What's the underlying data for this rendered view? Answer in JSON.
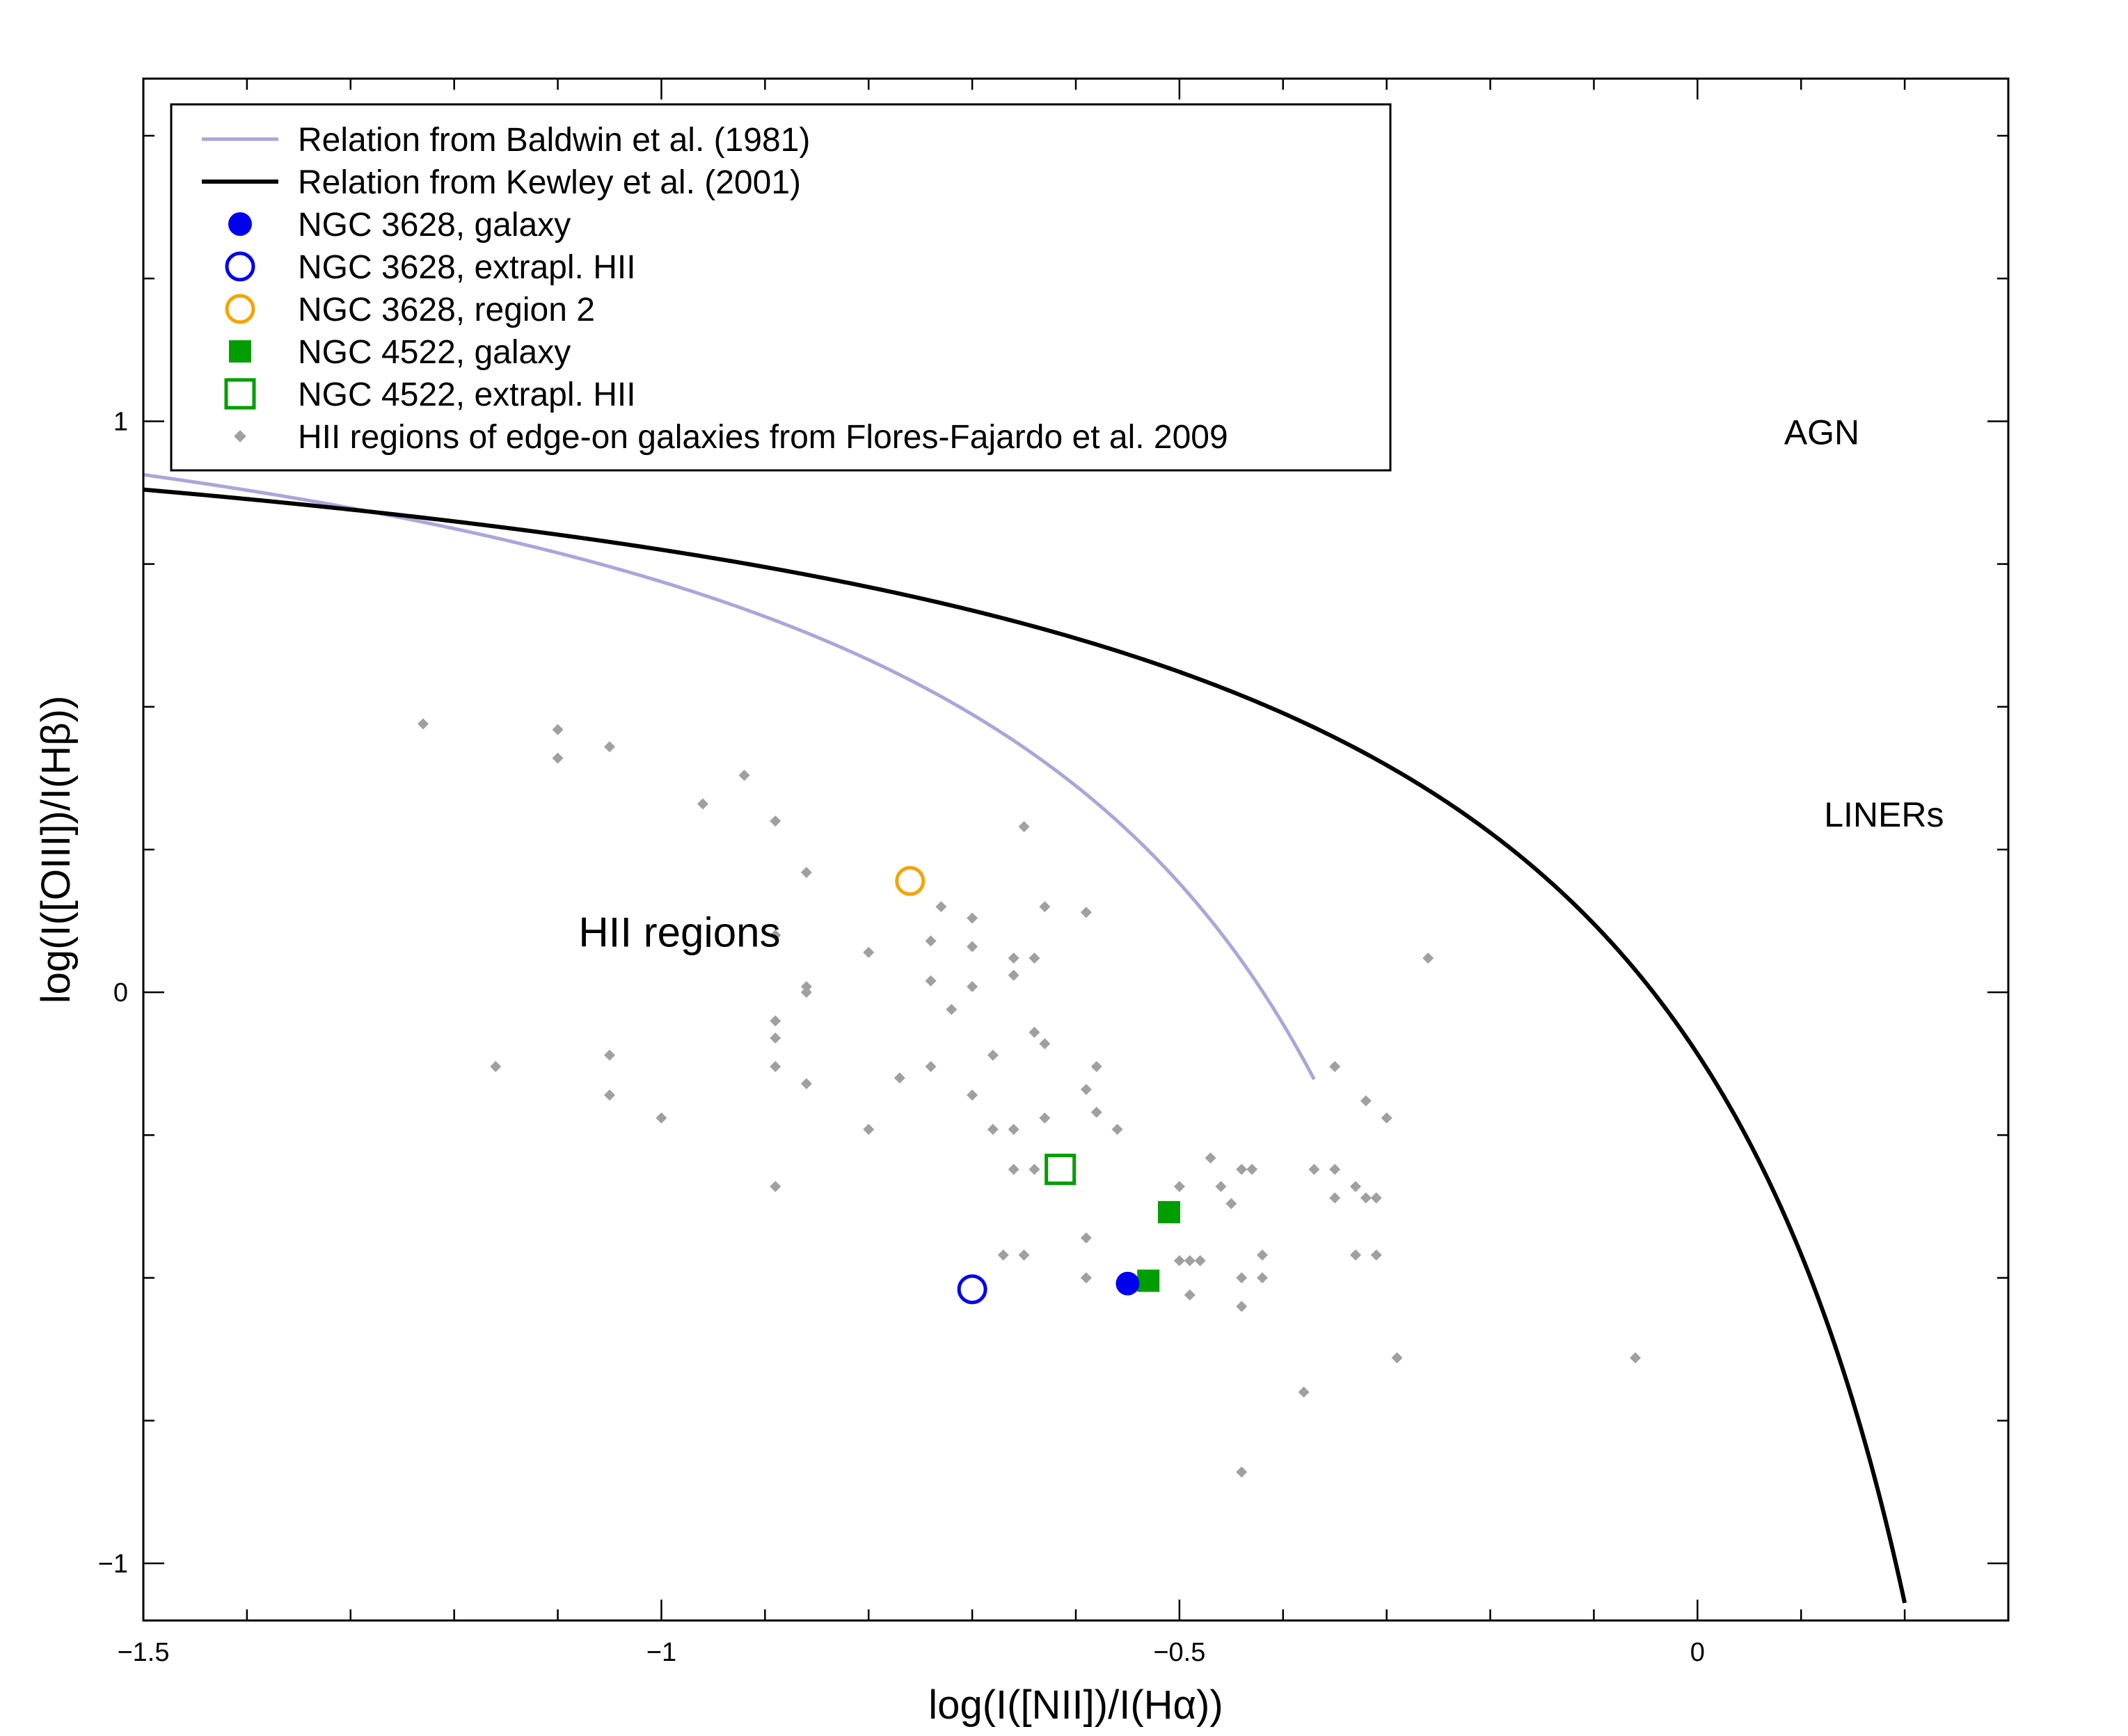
{
  "chart_data": {
    "type": "scatter",
    "title": "",
    "xlabel": "log(I([NII])/I(Hα))",
    "ylabel": "log(I([OIII])/I(Hβ))",
    "xlim": [
      -1.5,
      0.3
    ],
    "ylim": [
      -1.1,
      1.6
    ],
    "x_ticks": [
      -1.5,
      -1,
      -0.5,
      0
    ],
    "x_tick_labels": [
      "−1.5",
      "−1",
      "−0.5",
      "0"
    ],
    "y_ticks": [
      -1,
      0,
      1
    ],
    "y_tick_labels": [
      "−1",
      "0",
      "1"
    ],
    "grid": false,
    "legend_position": "top-left",
    "region_labels": [
      {
        "text": "AGN",
        "x": 0.12,
        "y": 0.96
      },
      {
        "text": "LINERs",
        "x": 0.18,
        "y": 0.29
      },
      {
        "text": "HII regions",
        "x": -1.08,
        "y": 0.08
      }
    ],
    "curves": [
      {
        "name": "Relation from Baldwin et al. (1981)",
        "color": "#a9a7d9",
        "formula": "0.61/(x-0.05)+1.3",
        "x_range": [
          -1.5,
          -0.37
        ]
      },
      {
        "name": "Relation from Kewley et al. (2001)",
        "color": "#000000",
        "formula": "0.61/(x-0.47)+1.19",
        "x_range": [
          -1.5,
          0.2
        ]
      }
    ],
    "series": [
      {
        "name": "NGC 3628, galaxy",
        "marker": "circle-filled",
        "color": "#0000ee",
        "points": [
          [
            -0.55,
            -0.51
          ]
        ]
      },
      {
        "name": "NGC 3628, extrapl. HII",
        "marker": "circle-open",
        "color": "#0000ee",
        "points": [
          [
            -0.7,
            -0.52
          ]
        ]
      },
      {
        "name": "NGC 3628, region 2",
        "marker": "circle-open",
        "color": "#f5a400",
        "points": [
          [
            -0.76,
            0.195
          ]
        ]
      },
      {
        "name": "NGC 4522, galaxy",
        "marker": "square-filled",
        "color": "#009e00",
        "points": [
          [
            -0.51,
            -0.385
          ],
          [
            -0.53,
            -0.505
          ]
        ]
      },
      {
        "name": "NGC 4522, extrapl. HII",
        "marker": "square-open",
        "color": "#009e00",
        "points": [
          [
            -0.615,
            -0.31
          ]
        ]
      },
      {
        "name": "HII regions of edge-on galaxies from Flores-Fajardo et al. 2009",
        "marker": "diamond-small",
        "color": "#a0a0a0",
        "points": [
          [
            -1.23,
            0.47
          ],
          [
            -1.1,
            0.46
          ],
          [
            -1.1,
            0.41
          ],
          [
            -1.05,
            0.43
          ],
          [
            -0.96,
            0.33
          ],
          [
            -0.92,
            0.38
          ],
          [
            -0.89,
            0.3
          ],
          [
            -0.86,
            0.21
          ],
          [
            -0.89,
            0.1
          ],
          [
            -0.86,
            0.01
          ],
          [
            -0.86,
            0.0
          ],
          [
            -0.89,
            -0.05
          ],
          [
            -0.89,
            -0.08
          ],
          [
            -0.89,
            -0.13
          ],
          [
            -0.86,
            -0.16
          ],
          [
            -0.89,
            -0.34
          ],
          [
            -1.16,
            -0.13
          ],
          [
            -1.05,
            -0.11
          ],
          [
            -1.05,
            -0.18
          ],
          [
            -1.0,
            -0.22
          ],
          [
            -0.8,
            -0.24
          ],
          [
            -0.8,
            0.07
          ],
          [
            -0.77,
            -0.15
          ],
          [
            -0.74,
            -0.13
          ],
          [
            -0.74,
            0.09
          ],
          [
            -0.74,
            0.02
          ],
          [
            -0.73,
            0.15
          ],
          [
            -0.72,
            -0.03
          ],
          [
            -0.7,
            0.13
          ],
          [
            -0.7,
            0.08
          ],
          [
            -0.7,
            0.01
          ],
          [
            -0.7,
            -0.18
          ],
          [
            -0.68,
            -0.11
          ],
          [
            -0.68,
            -0.24
          ],
          [
            -0.66,
            0.06
          ],
          [
            -0.66,
            0.03
          ],
          [
            -0.66,
            -0.24
          ],
          [
            -0.64,
            0.06
          ],
          [
            -0.64,
            -0.07
          ],
          [
            -0.64,
            -0.31
          ],
          [
            -0.63,
            0.15
          ],
          [
            -0.63,
            -0.09
          ],
          [
            -0.63,
            -0.22
          ],
          [
            -0.66,
            -0.31
          ],
          [
            -0.65,
            0.29
          ],
          [
            -0.59,
            0.14
          ],
          [
            -0.58,
            -0.13
          ],
          [
            -0.59,
            -0.17
          ],
          [
            -0.58,
            -0.21
          ],
          [
            -0.56,
            -0.24
          ],
          [
            -0.59,
            -0.43
          ],
          [
            -0.59,
            -0.5
          ],
          [
            -0.54,
            -0.51
          ],
          [
            -0.5,
            -0.34
          ],
          [
            -0.5,
            -0.47
          ],
          [
            -0.49,
            -0.47
          ],
          [
            -0.48,
            -0.47
          ],
          [
            -0.49,
            -0.53
          ],
          [
            -0.47,
            -0.29
          ],
          [
            -0.46,
            -0.34
          ],
          [
            -0.45,
            -0.37
          ],
          [
            -0.44,
            -0.31
          ],
          [
            -0.44,
            -0.55
          ],
          [
            -0.43,
            -0.31
          ],
          [
            -0.42,
            -0.46
          ],
          [
            -0.42,
            -0.5
          ],
          [
            -0.44,
            -0.5
          ],
          [
            -0.44,
            -0.84
          ],
          [
            -0.38,
            -0.7
          ],
          [
            -0.37,
            -0.31
          ],
          [
            -0.35,
            -0.31
          ],
          [
            -0.35,
            -0.13
          ],
          [
            -0.35,
            -0.36
          ],
          [
            -0.33,
            -0.34
          ],
          [
            -0.33,
            -0.46
          ],
          [
            -0.32,
            -0.19
          ],
          [
            -0.32,
            -0.36
          ],
          [
            -0.31,
            -0.36
          ],
          [
            -0.31,
            -0.46
          ],
          [
            -0.3,
            -0.22
          ],
          [
            -0.29,
            -0.64
          ],
          [
            -0.26,
            0.06
          ],
          [
            -0.06,
            -0.64
          ],
          [
            -0.65,
            -0.46
          ],
          [
            -0.67,
            -0.46
          ]
        ]
      }
    ]
  }
}
